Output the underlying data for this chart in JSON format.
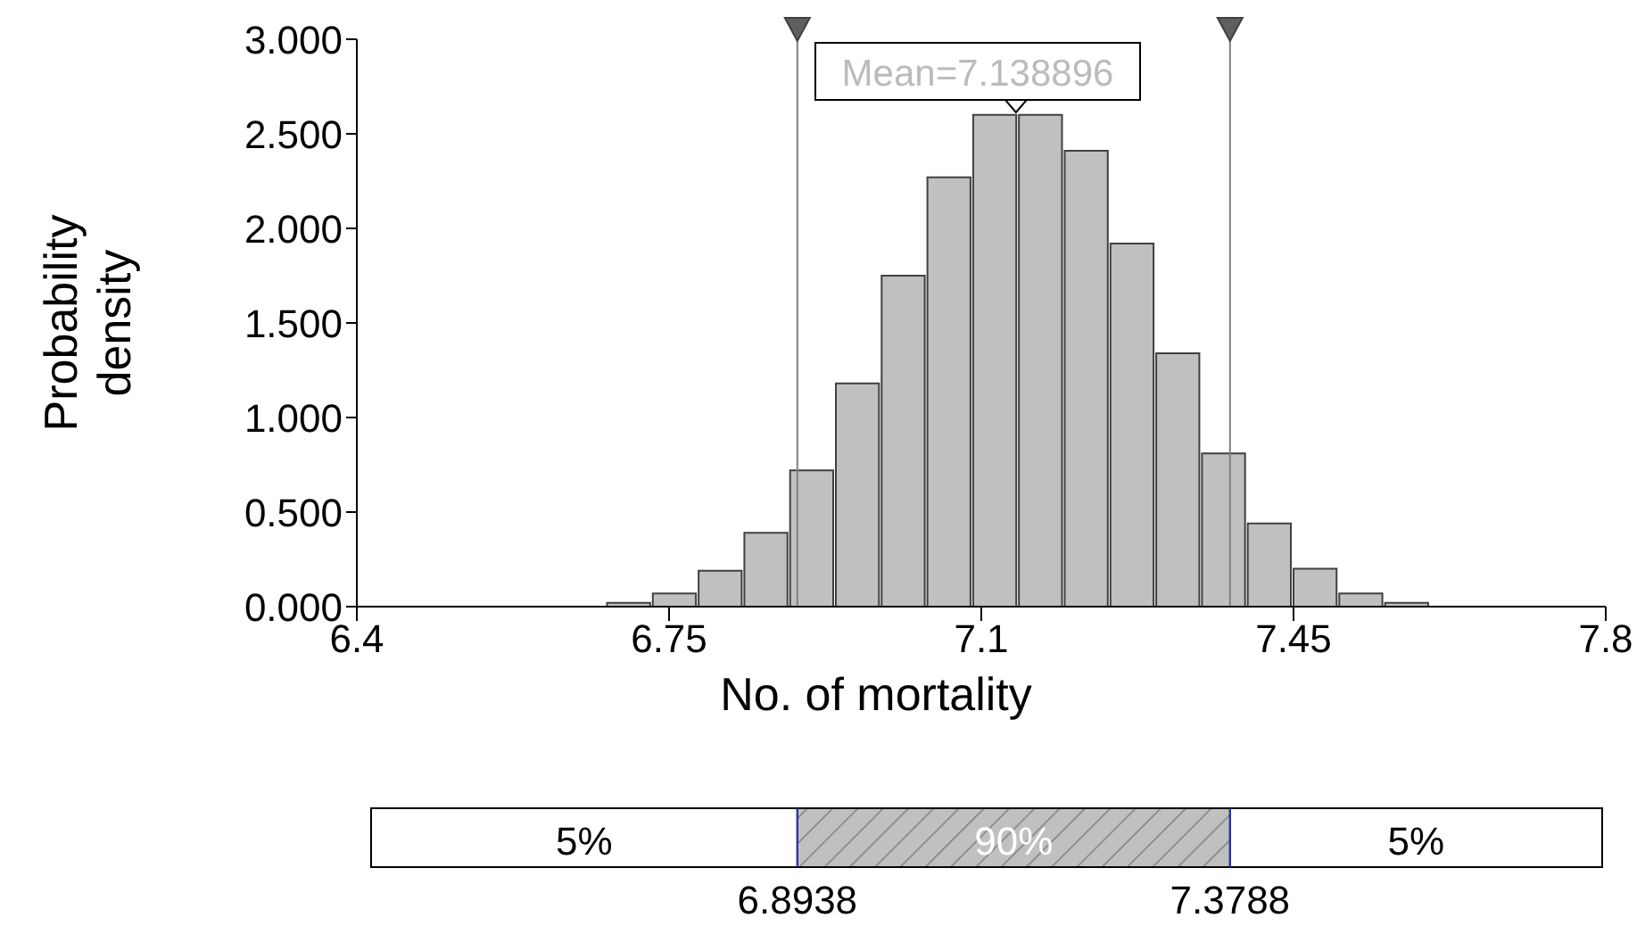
{
  "chart_data": {
    "type": "histogram",
    "xlabel": "No. of mortality",
    "ylabel": "Probability density",
    "bins": [
      6.679,
      6.7303,
      6.7816,
      6.8329,
      6.8842,
      6.9355,
      6.9868,
      7.0381,
      7.0894,
      7.1407,
      7.192,
      7.2433,
      7.2946,
      7.3459,
      7.3972,
      7.4485,
      7.4998,
      7.5511,
      7.6024
    ],
    "values": [
      0.02,
      0.07,
      0.19,
      0.39,
      0.72,
      1.18,
      1.75,
      2.27,
      2.6,
      2.6,
      2.41,
      1.92,
      1.34,
      0.81,
      0.44,
      0.2,
      0.07,
      0.02
    ],
    "color": "#c0c0c0",
    "xlim": [
      6.4,
      7.8
    ],
    "xticks": [
      6.4,
      6.75,
      7.1,
      7.45,
      7.8
    ],
    "ylim": [
      0,
      3
    ],
    "yticks": [
      {
        "value": 0,
        "label": "0.000"
      },
      {
        "value": 0.5,
        "label": "0.500"
      },
      {
        "value": 1,
        "label": "1.000"
      },
      {
        "value": 1.5,
        "label": "1.500"
      },
      {
        "value": 2,
        "label": "2.000"
      },
      {
        "value": 2.5,
        "label": "2.500"
      },
      {
        "value": 3,
        "label": "3.000"
      }
    ],
    "ref_lines": [
      {
        "axis": "x",
        "value": 6.8938,
        "color": "#808080"
      },
      {
        "axis": "x",
        "value": 7.3788,
        "color": "#808080"
      }
    ],
    "annotations": [
      "5%",
      "90%",
      "5%",
      "6.8938",
      "7.3788",
      "Mean=7.138896"
    ],
    "grid": false
  }
}
